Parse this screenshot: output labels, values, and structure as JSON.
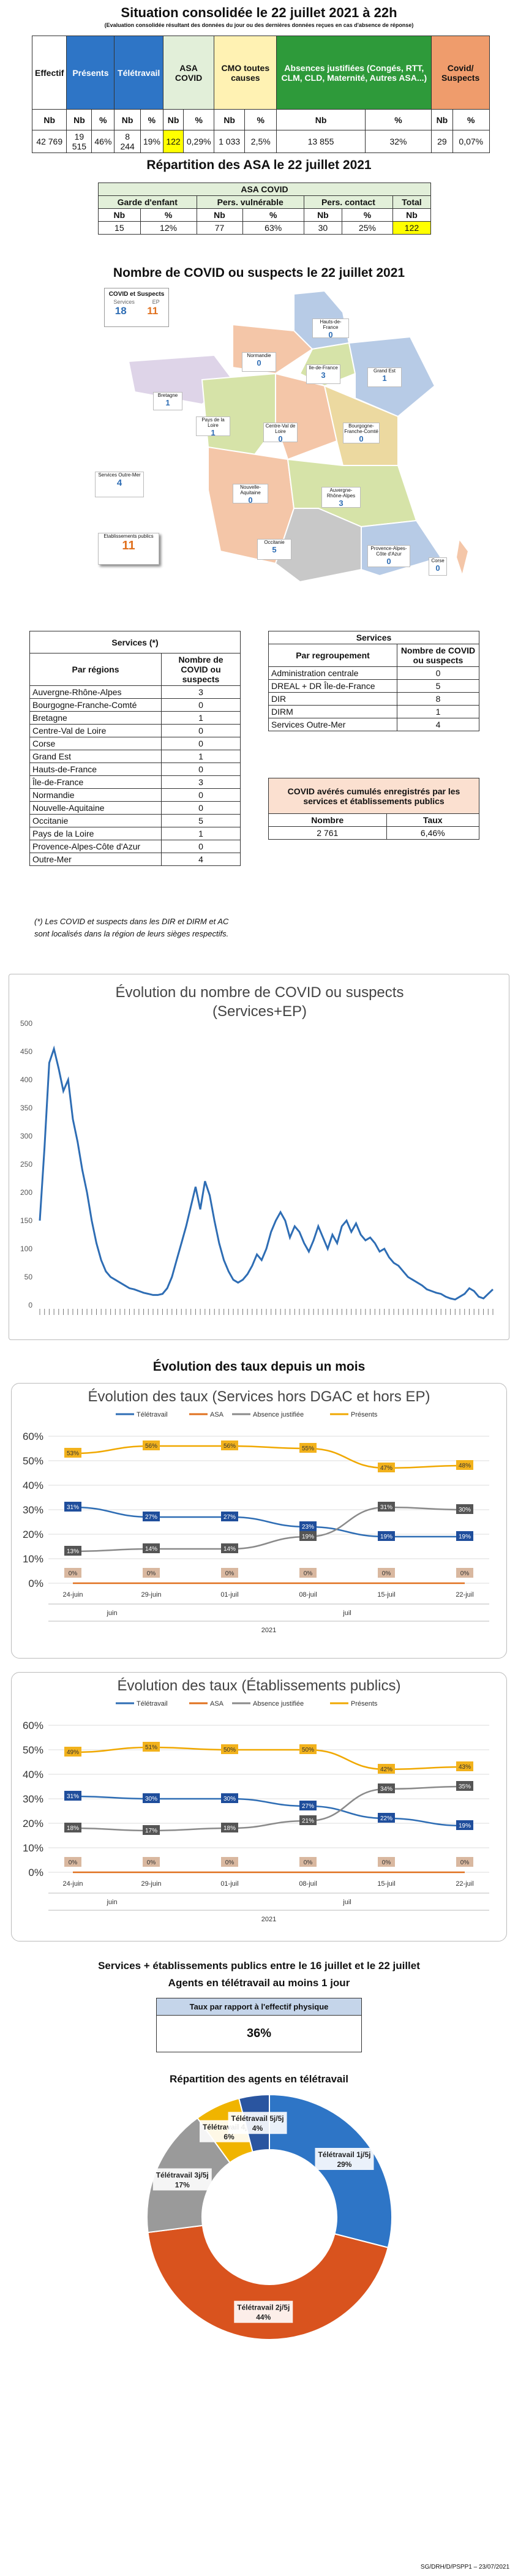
{
  "header": {
    "title": "Situation consolidée le 22 juillet 2021 à 22h",
    "subtitle": "(Evaluation consolidée résultant des données du jour ou des dernières données reçues en cas d'absence de réponse)"
  },
  "top_table": {
    "columns": [
      "Effectif",
      "Présents",
      "Télétravail",
      "ASA COVID",
      "CMO toutes causes",
      "Absences justifiées (Congés, RTT, CLM, CLD, Maternité, Autres ASA...)",
      "Covid/ Suspects"
    ],
    "nb": "Nb",
    "pct": "%",
    "values": [
      "42 769",
      "19 515",
      "46%",
      "8 244",
      "19%",
      "122",
      "0,29%",
      "1 033",
      "2,5%",
      "13 855",
      "32%",
      "29",
      "0,07%"
    ]
  },
  "asa": {
    "title": "Répartition des ASA le 22 juillet 2021",
    "header": "ASA COVID",
    "groups": [
      "Garde d'enfant",
      "Pers. vulnérable",
      "Pers. contact",
      "Total"
    ],
    "sub": [
      "Nb",
      "%",
      "Nb",
      "%",
      "Nb",
      "%",
      "Nb"
    ],
    "values": [
      "15",
      "12%",
      "77",
      "63%",
      "30",
      "25%",
      "122"
    ]
  },
  "map": {
    "title": "Nombre de COVID ou suspects le 22 juillet 2021",
    "legend_title": "COVID et Suspects",
    "legend_col1": "Services",
    "legend_col2": "EP",
    "legend_val1": "18",
    "legend_val2": "11",
    "ep_label": "Etablissements publics",
    "ep_value": "11",
    "regions": [
      {
        "name": "Hauts-de-France",
        "value": "0"
      },
      {
        "name": "Normandie",
        "value": "0"
      },
      {
        "name": "Ile-de-France",
        "value": "3"
      },
      {
        "name": "Grand Est",
        "value": "1"
      },
      {
        "name": "Bretagne",
        "value": "1"
      },
      {
        "name": "Pays de la Loire",
        "value": "1"
      },
      {
        "name": "Centre-Val de Loire",
        "value": "0"
      },
      {
        "name": "Bourgogne-Franche-Comté",
        "value": "0"
      },
      {
        "name": "Nouvelle-Aquitaine",
        "value": "0"
      },
      {
        "name": "Auvergne-Rhône-Alpes",
        "value": "3"
      },
      {
        "name": "Occitanie",
        "value": "5"
      },
      {
        "name": "Provence-Alpes-Côte d'Azur",
        "value": "0"
      },
      {
        "name": "Corse",
        "value": "0"
      },
      {
        "name": "Services Outre-Mer",
        "value": "4"
      }
    ]
  },
  "regions_table": {
    "title": "Services (*)",
    "col1": "Par régions",
    "col2": "Nombre de COVID ou suspects",
    "rows": [
      [
        "Auvergne-Rhône-Alpes",
        "3"
      ],
      [
        "Bourgogne-Franche-Comté",
        "0"
      ],
      [
        "Bretagne",
        "1"
      ],
      [
        "Centre-Val de Loire",
        "0"
      ],
      [
        "Corse",
        "0"
      ],
      [
        "Grand Est",
        "1"
      ],
      [
        "Hauts-de-France",
        "0"
      ],
      [
        "Île-de-France",
        "3"
      ],
      [
        "Normandie",
        "0"
      ],
      [
        "Nouvelle-Aquitaine",
        "0"
      ],
      [
        "Occitanie",
        "5"
      ],
      [
        "Pays de la Loire",
        "1"
      ],
      [
        "Provence-Alpes-Côte d'Azur",
        "0"
      ],
      [
        "Outre-Mer",
        "4"
      ]
    ],
    "note": "(*) Les COVID et suspects dans les DIR et DIRM et AC sont localisés dans la région de leurs sièges respectifs."
  },
  "services_table": {
    "title": "Services",
    "col1": "Par regroupement",
    "col2": "Nombre de COVID ou suspects",
    "rows": [
      [
        "Administration centrale",
        "0"
      ],
      [
        "DREAL + DR Île-de-France",
        "5"
      ],
      [
        "DIR",
        "8"
      ],
      [
        "DIRM",
        "1"
      ],
      [
        "Services Outre-Mer",
        "4"
      ]
    ]
  },
  "cumul": {
    "title": "COVID avérés cumulés enregistrés par les services et établissements publics",
    "col1": "Nombre",
    "col2": "Taux",
    "val1": "2 761",
    "val2": "6,46%"
  },
  "chart_data": [
    {
      "type": "line",
      "title": "Évolution du nombre de COVID ou suspects (Services+EP)",
      "ylim": [
        0,
        500
      ],
      "yticks": [
        0,
        50,
        100,
        150,
        200,
        250,
        300,
        350,
        400,
        450,
        500
      ],
      "series": [
        {
          "values": [
            150,
            280,
            430,
            455,
            420,
            380,
            400,
            330,
            290,
            240,
            200,
            150,
            110,
            80,
            60,
            50,
            45,
            40,
            35,
            30,
            28,
            25,
            22,
            20,
            18,
            18,
            20,
            30,
            50,
            80,
            110,
            140,
            175,
            210,
            170,
            220,
            195,
            150,
            110,
            80,
            60,
            45,
            40,
            45,
            55,
            70,
            90,
            80,
            100,
            130,
            150,
            165,
            150,
            120,
            140,
            130,
            110,
            95,
            115,
            140,
            120,
            100,
            125,
            110,
            140,
            150,
            130,
            145,
            125,
            115,
            120,
            110,
            95,
            100,
            85,
            75,
            70,
            60,
            50,
            45,
            40,
            35,
            28,
            25,
            22,
            20,
            15,
            12,
            10,
            15,
            20,
            30,
            25,
            15,
            12,
            20,
            28
          ]
        }
      ]
    },
    {
      "type": "line",
      "title": "Évolution des taux (Services hors DGAC et hors EP)",
      "legend": [
        "Télétravail",
        "ASA",
        "Absence justifiée",
        "Présents"
      ],
      "categories": [
        "24-juin",
        "29-juin",
        "01-juil",
        "08-juil",
        "15-juil",
        "22-juil"
      ],
      "months": [
        "juin",
        "juil"
      ],
      "year": "2021",
      "ylim": [
        0,
        60
      ],
      "yticks": [
        "0%",
        "10%",
        "20%",
        "30%",
        "40%",
        "50%",
        "60%"
      ],
      "series": [
        {
          "name": "Télétravail",
          "values": [
            31,
            27,
            27,
            23,
            19,
            19
          ]
        },
        {
          "name": "ASA",
          "values": [
            0,
            0,
            0,
            0,
            0,
            0
          ]
        },
        {
          "name": "Absence justifiée",
          "values": [
            13,
            14,
            14,
            19,
            31,
            30
          ]
        },
        {
          "name": "Présents",
          "values": [
            53,
            56,
            56,
            55,
            47,
            48
          ]
        }
      ]
    },
    {
      "type": "line",
      "title": "Évolution des taux (Établissements publics)",
      "legend": [
        "Télétravail",
        "ASA",
        "Absence justifiée",
        "Présents"
      ],
      "categories": [
        "24-juin",
        "29-juin",
        "01-juil",
        "08-juil",
        "15-juil",
        "22-juil"
      ],
      "months": [
        "juin",
        "juil"
      ],
      "year": "2021",
      "ylim": [
        0,
        60
      ],
      "yticks": [
        "0%",
        "10%",
        "20%",
        "30%",
        "40%",
        "50%",
        "60%"
      ],
      "series": [
        {
          "name": "Télétravail",
          "values": [
            31,
            30,
            30,
            27,
            22,
            19
          ]
        },
        {
          "name": "ASA",
          "values": [
            0,
            0,
            0,
            0,
            0,
            0
          ]
        },
        {
          "name": "Absence justifiée",
          "values": [
            18,
            17,
            18,
            21,
            34,
            35
          ]
        },
        {
          "name": "Présents",
          "values": [
            49,
            51,
            50,
            50,
            42,
            43
          ]
        }
      ]
    },
    {
      "type": "pie",
      "title": "Répartition des agents en télétravail",
      "slices": [
        {
          "label": "Télétravail 1j/5j",
          "value": 29
        },
        {
          "label": "Télétravail 2j/5j",
          "value": 44
        },
        {
          "label": "Télétravail 3j/5j",
          "value": 17
        },
        {
          "label": "Télétravail 4j/5j",
          "value": 6
        },
        {
          "label": "Télétravail 5j/5j",
          "value": 4
        }
      ]
    }
  ],
  "evolution_title": "Évolution des taux depuis un mois",
  "teletravail": {
    "title": "Services + établissements publics entre le 16 juillet et le 22 juillet",
    "subtitle": "Agents en télétravail au moins 1 jour",
    "box_header": "Taux par rapport à l'effectif physique",
    "box_value": "36%"
  },
  "footer": "SG/DRH/D/PSPP1 – 23/07/2021",
  "colors": {
    "tele": "#2e6db4",
    "asa": "#e0701e",
    "abs": "#8a8a8a",
    "pres": "#f0a800"
  }
}
